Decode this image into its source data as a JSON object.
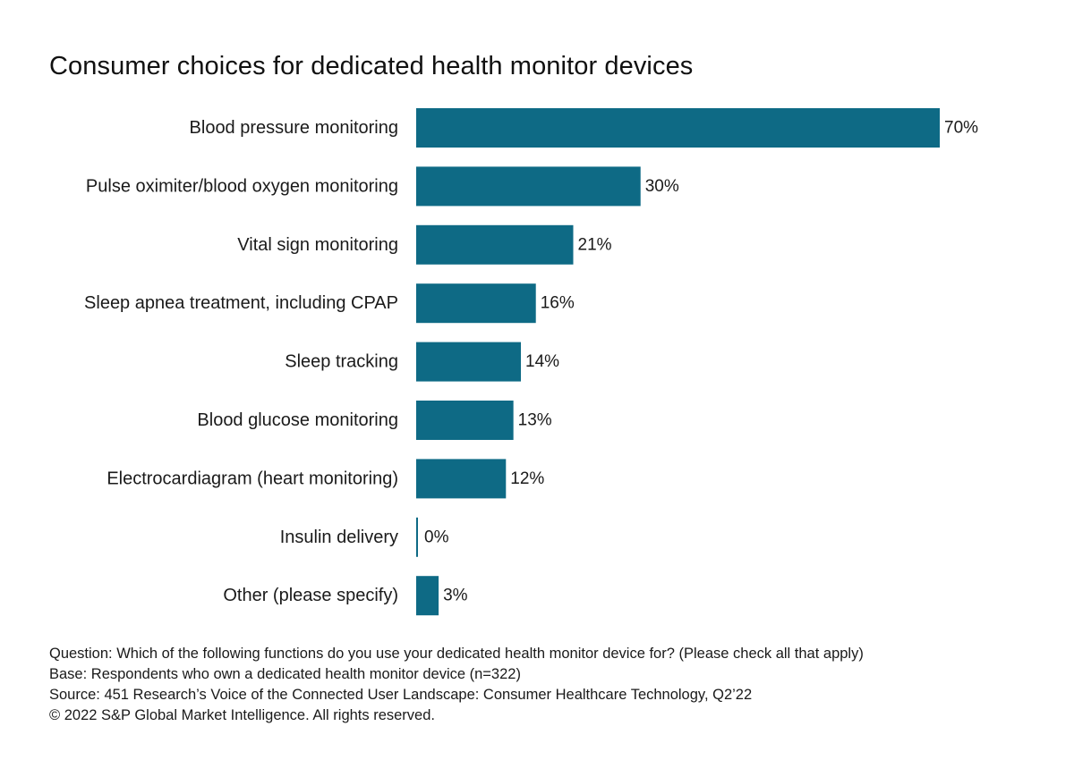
{
  "colors": {
    "bar": "#0e6a85",
    "text": "#1a1a1a",
    "background": "#ffffff"
  },
  "chart_data": {
    "type": "bar",
    "orientation": "horizontal",
    "title": "Consumer choices for dedicated health monitor devices",
    "categories": [
      "Blood pressure monitoring",
      "Pulse oximiter/blood oxygen monitoring",
      "Vital sign monitoring",
      "Sleep apnea treatment, including CPAP",
      "Sleep tracking",
      "Blood glucose monitoring",
      "Electrocardiagram (heart monitoring)",
      "Insulin delivery",
      "Other (please specify)"
    ],
    "values": [
      70,
      30,
      21,
      16,
      14,
      13,
      12,
      0,
      3
    ],
    "data_labels": [
      "70%",
      "30%",
      "21%",
      "16%",
      "14%",
      "13%",
      "12%",
      "0%",
      "3%"
    ],
    "unit": "%",
    "xlim": [
      0,
      70
    ],
    "grid": false,
    "legend": "none"
  },
  "footnotes": {
    "question": "Question: Which of the following functions do you use your dedicated health monitor device for? (Please check all that apply)",
    "base": "Base: Respondents who own a dedicated health monitor device (n=322)",
    "source": "Source: 451 Research’s Voice of the Connected User Landscape: Consumer Healthcare Technology, Q2’22",
    "copyright": "© 2022 S&P Global Market Intelligence. All rights reserved."
  }
}
